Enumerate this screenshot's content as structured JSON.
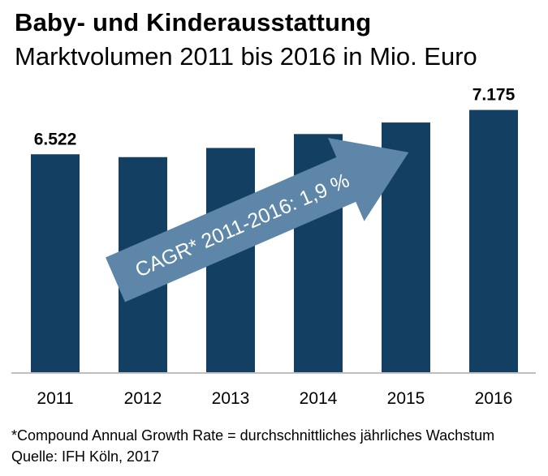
{
  "chart_data": {
    "type": "bar",
    "title": "Baby- und Kinderausstattung",
    "subtitle": "Marktvolumen 2011 bis 2016 in Mio. Euro",
    "categories": [
      "2011",
      "2012",
      "2013",
      "2014",
      "2015",
      "2016"
    ],
    "values": [
      6522,
      6480,
      6615,
      6820,
      6990,
      7175
    ],
    "data_labels": [
      {
        "index": 0,
        "text": "6.522"
      },
      {
        "index": 5,
        "text": "7.175"
      }
    ],
    "ylim": [
      3300,
      7600
    ],
    "xlabel": "",
    "ylabel": "",
    "grid": false,
    "annotation": "CAGR* 2011-2016: 1,9 %",
    "colors": {
      "bar": "#133f63",
      "arrow": "#5d86a8",
      "arrow_text": "#ffffff",
      "axis": "#bfbfbf"
    }
  },
  "footnotes": {
    "definition": "*Compound Annual Growth Rate = durchschnittliches jährliches Wachstum",
    "source": "Quelle: IFH Köln, 2017"
  }
}
